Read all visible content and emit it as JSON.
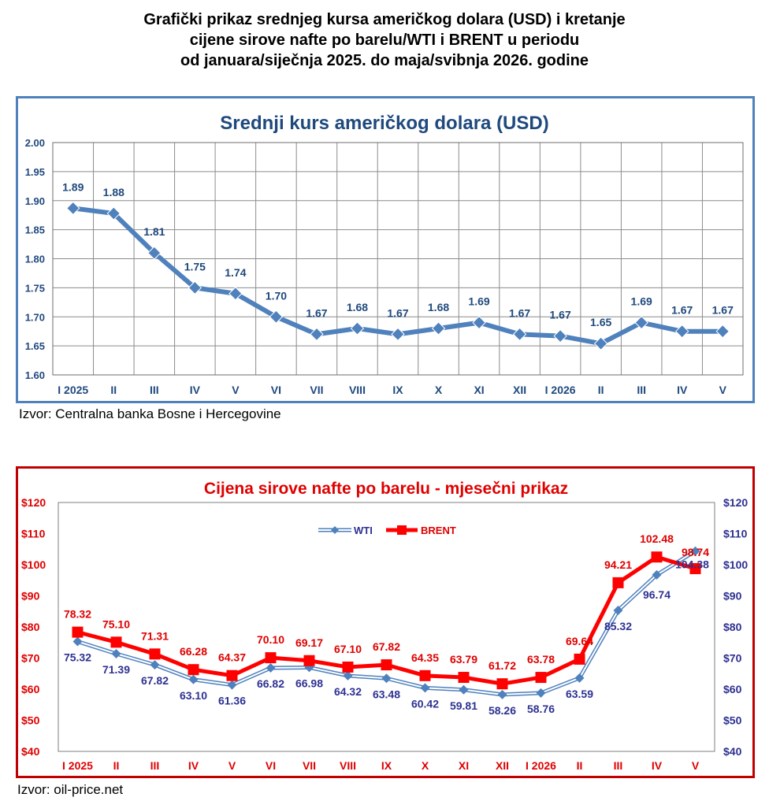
{
  "page_title": "Grafički prikaz srednjeg kursa američkog dolara (USD) i kretanje\ncijene sirove nafte po barelu/WTI i BRENT u periodu\nod januara/siječnja 2025. do maja/svibnja 2026. godine",
  "sources": {
    "usd": "Izvor: Centralna banka Bosne i Hercegovine",
    "oil": "Izvor: oil-price.net"
  },
  "colors": {
    "usd_line": "#4f81bd",
    "usd_title": "#1f497d",
    "wti": "#4f81bd",
    "wti_label": "#2e3192",
    "brent": "#ff0000",
    "brent_label": "#e00000",
    "oil_border": "#c00000"
  },
  "chart_data": [
    {
      "type": "line",
      "title": "Srednji kurs američkog dolara (USD)",
      "categories": [
        "I 2025",
        "II",
        "III",
        "IV",
        "V",
        "VI",
        "VII",
        "VIII",
        "IX",
        "X",
        "XI",
        "XII",
        "I 2026",
        "II",
        "III",
        "IV",
        "V"
      ],
      "series": [
        {
          "values": [
            1.887,
            1.878,
            1.81,
            1.75,
            1.74,
            1.7,
            1.67,
            1.68,
            1.67,
            1.68,
            1.69,
            1.67,
            1.667,
            1.654,
            1.69,
            1.675,
            1.675
          ],
          "labels": [
            "1.89",
            "1.88",
            "1.81",
            "1.75",
            "1.74",
            "1.70",
            "1.67",
            "1.68",
            "1.67",
            "1.68",
            "1.69",
            "1.67",
            "1.67",
            "1.65",
            "1.69",
            "1.67",
            "1.67"
          ]
        }
      ],
      "ylim": [
        1.6,
        2.0
      ],
      "yticks": [
        "1.60",
        "1.65",
        "1.70",
        "1.75",
        "1.80",
        "1.85",
        "1.90",
        "1.95",
        "2.00"
      ],
      "grid": true
    },
    {
      "type": "line",
      "title": "Cijena sirove nafte po barelu - mjesečni prikaz",
      "categories": [
        "I 2025",
        "II",
        "III",
        "IV",
        "V",
        "VI",
        "VII",
        "VIII",
        "IX",
        "X",
        "XI",
        "XII",
        "I 2026",
        "II",
        "III",
        "IV",
        "V"
      ],
      "series": [
        {
          "name": "WTI",
          "values": [
            75.32,
            71.39,
            67.82,
            63.1,
            61.36,
            66.82,
            66.98,
            64.32,
            63.48,
            60.42,
            59.81,
            58.26,
            58.76,
            63.59,
            85.32,
            96.74,
            104.38
          ]
        },
        {
          "name": "BRENT",
          "values": [
            78.32,
            75.1,
            71.31,
            66.28,
            64.37,
            70.1,
            69.17,
            67.1,
            67.82,
            64.35,
            63.79,
            61.72,
            63.78,
            69.64,
            94.21,
            102.48,
            98.74
          ]
        }
      ],
      "ylim": [
        40,
        120
      ],
      "yticks_left": [
        "$40",
        "$50",
        "$60",
        "$70",
        "$80",
        "$90",
        "$100",
        "$110",
        "$120"
      ],
      "yticks_right": [
        "$40",
        "$50",
        "$60",
        "$70",
        "$80",
        "$90",
        "$100",
        "$110",
        "$120"
      ],
      "legend": "top-center",
      "grid": false
    }
  ]
}
